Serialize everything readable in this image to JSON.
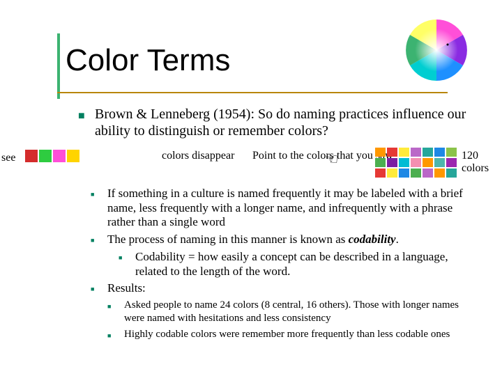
{
  "accent_color": "#3cb371",
  "underline_color": "#b8860b",
  "title": "Color Terms",
  "main_bullet": "Brown & Lenneberg (1954): So do naming practices influence our ability to distinguish or remember colors?",
  "see_label": "see",
  "see_swatches": [
    "#d42c2c",
    "#2ecc40",
    "#ff4fd8",
    "#ffd400"
  ],
  "mid_text1": "colors disappear",
  "mid_text2": "Point to the colors that you saw",
  "grid_colors": [
    "#ff9800",
    "#e53935",
    "#ffeb3b",
    "#ba68c8",
    "#26a69a",
    "#1e88e5",
    "#8bc34a",
    "#4caf50",
    "#7b1fa2",
    "#00bcd4",
    "#f48fb1",
    "#ff9800",
    "#4db6ac",
    "#9c27b0",
    "#e53935",
    "#ffeb3b",
    "#1e88e5",
    "#4caf50",
    "#ba68c8",
    "#ff9800",
    "#26a69a"
  ],
  "count_text1": "120",
  "count_text2": "colors",
  "sub": [
    "If something in a culture is named frequently it may be labeled with a brief name, less frequently with a longer name, and infrequently with a phrase rather than a single word",
    {
      "pre": "The process of naming in this manner is known as ",
      "ital": "codability",
      "post": ".",
      "child": "Codability = how easily a concept can be described in a language, related to the length of the word."
    },
    "Results:"
  ],
  "results": [
    "Asked people to name 24 colors (8 central, 16 others).  Those with longer names were named with hesitations and less consistency",
    "Highly codable colors were remember more frequently than less codable ones"
  ],
  "wheel_bg": "#ffffff",
  "bullet_color": "#008060"
}
